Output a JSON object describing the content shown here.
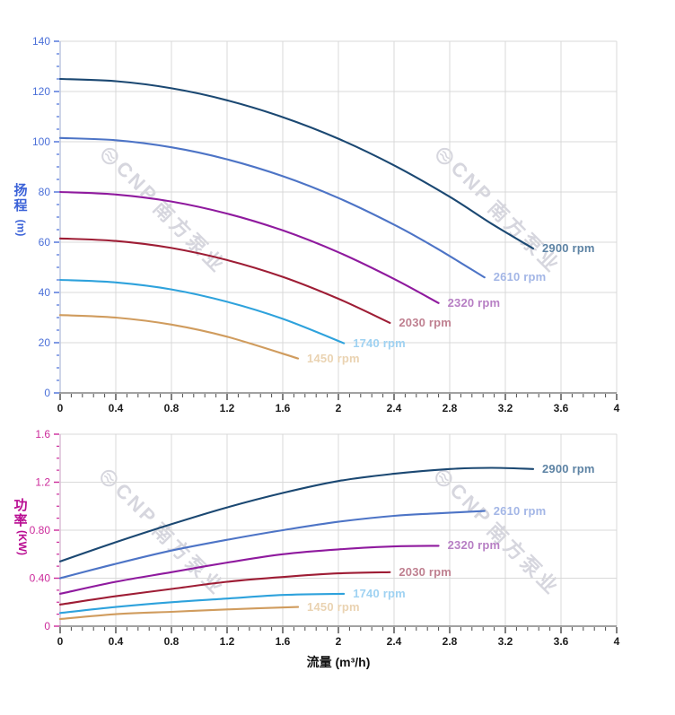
{
  "watermark": {
    "brand": "CNP",
    "cn": "南方泵业",
    "color": "#d6d6de"
  },
  "x_axis_title": "流量 (m³/h)",
  "chart_data": [
    {
      "type": "line",
      "id": "head",
      "ylabel_main": "扬程",
      "ylabel_unit": "(m)",
      "xlabel": "",
      "xlim": [
        0,
        4
      ],
      "ylim": [
        0,
        140
      ],
      "grid": true,
      "axis_color": "#4a6fd8",
      "axis_line_color": "#b9c3de",
      "xticks_values": [
        0,
        0.4,
        0.8,
        1.2,
        1.6,
        2,
        2.4,
        2.8,
        3.2,
        3.6,
        4
      ],
      "xticks_labels": [
        "0",
        "0.4",
        "0.8",
        "1.2",
        "1.6",
        "2",
        "2.4",
        "2.8",
        "3.2",
        "3.6",
        "4"
      ],
      "x_minor_step": 0.08,
      "yticks_values": [
        0,
        20,
        40,
        60,
        80,
        100,
        120,
        140
      ],
      "yticks_labels": [
        "0",
        "20",
        "40",
        "60",
        "80",
        "100",
        "120",
        "140"
      ],
      "y_minor_step": 5,
      "series": [
        {
          "label": "2900 rpm",
          "color": "#1b4872",
          "label_color": "#5d83a4",
          "points": [
            [
              0,
              125
            ],
            [
              0.4,
              124.1
            ],
            [
              0.8,
              121.3
            ],
            [
              1.2,
              116.5
            ],
            [
              1.6,
              109.8
            ],
            [
              2.0,
              101.2
            ],
            [
              2.4,
              90.6
            ],
            [
              2.8,
              78.1
            ],
            [
              3.1,
              67.4
            ],
            [
              3.4,
              57.5
            ]
          ]
        },
        {
          "label": "2610 rpm",
          "color": "#4d74c6",
          "label_color": "#a3b6e6",
          "points": [
            [
              0,
              101.5
            ],
            [
              0.4,
              100.6
            ],
            [
              0.8,
              97.8
            ],
            [
              1.2,
              93.0
            ],
            [
              1.6,
              86.3
            ],
            [
              2.0,
              77.6
            ],
            [
              2.4,
              67.0
            ],
            [
              2.7,
              57.8
            ],
            [
              3.05,
              46.0
            ]
          ]
        },
        {
          "label": "2320 rpm",
          "color": "#8f1a9e",
          "label_color": "#b77fc4",
          "points": [
            [
              0,
              80
            ],
            [
              0.4,
              79.0
            ],
            [
              0.8,
              76.2
            ],
            [
              1.2,
              71.4
            ],
            [
              1.6,
              64.7
            ],
            [
              2.0,
              56.0
            ],
            [
              2.4,
              45.4
            ],
            [
              2.72,
              35.8
            ]
          ]
        },
        {
          "label": "2030 rpm",
          "color": "#9e1d35",
          "label_color": "#bf8090",
          "points": [
            [
              0,
              61.5
            ],
            [
              0.4,
              60.5
            ],
            [
              0.8,
              57.7
            ],
            [
              1.2,
              52.9
            ],
            [
              1.6,
              46.2
            ],
            [
              2.0,
              37.5
            ],
            [
              2.37,
              27.9
            ]
          ]
        },
        {
          "label": "1740 rpm",
          "color": "#2ea2dc",
          "label_color": "#9fd2f2",
          "points": [
            [
              0,
              45
            ],
            [
              0.4,
              44.0
            ],
            [
              0.8,
              41.2
            ],
            [
              1.2,
              36.3
            ],
            [
              1.6,
              29.5
            ],
            [
              2.04,
              19.8
            ]
          ]
        },
        {
          "label": "1450 rpm",
          "color": "#d09c5e",
          "label_color": "#ead3b2",
          "points": [
            [
              0,
              31
            ],
            [
              0.4,
              30.0
            ],
            [
              0.8,
              27.2
            ],
            [
              1.2,
              22.4
            ],
            [
              1.71,
              13.7
            ]
          ]
        }
      ]
    },
    {
      "type": "line",
      "id": "power",
      "ylabel_main": "功率",
      "ylabel_unit": "(KW)",
      "xlabel": "流量 (m³/h)",
      "xlim": [
        0,
        4
      ],
      "ylim": [
        0,
        1.6
      ],
      "grid": true,
      "axis_color": "#cc2b9b",
      "axis_line_color": "#d9b9d2",
      "xticks_values": [
        0,
        0.4,
        0.8,
        1.2,
        1.6,
        2,
        2.4,
        2.8,
        3.2,
        3.6,
        4
      ],
      "xticks_labels": [
        "0",
        "0.4",
        "0.8",
        "1.2",
        "1.6",
        "2",
        "2.4",
        "2.8",
        "3.2",
        "3.6",
        "4"
      ],
      "x_minor_step": 0.08,
      "yticks_values": [
        0,
        0.4,
        0.8,
        1.2,
        1.6
      ],
      "yticks_labels": [
        "0",
        "0.40",
        "0.80",
        "1.2",
        "1.6"
      ],
      "y_minor_step": 0.1,
      "series": [
        {
          "label": "2900 rpm",
          "color": "#1b4872",
          "label_color": "#5d83a4",
          "points": [
            [
              0,
              0.54
            ],
            [
              0.4,
              0.7
            ],
            [
              0.8,
              0.85
            ],
            [
              1.2,
              0.99
            ],
            [
              1.6,
              1.11
            ],
            [
              2.0,
              1.21
            ],
            [
              2.4,
              1.27
            ],
            [
              2.8,
              1.31
            ],
            [
              3.1,
              1.32
            ],
            [
              3.4,
              1.31
            ]
          ]
        },
        {
          "label": "2610 rpm",
          "color": "#4d74c6",
          "label_color": "#a3b6e6",
          "points": [
            [
              0,
              0.4
            ],
            [
              0.4,
              0.52
            ],
            [
              0.8,
              0.63
            ],
            [
              1.2,
              0.72
            ],
            [
              1.6,
              0.8
            ],
            [
              2.0,
              0.87
            ],
            [
              2.4,
              0.92
            ],
            [
              2.7,
              0.94
            ],
            [
              3.05,
              0.96
            ]
          ]
        },
        {
          "label": "2320 rpm",
          "color": "#8f1a9e",
          "label_color": "#b77fc4",
          "points": [
            [
              0,
              0.27
            ],
            [
              0.4,
              0.37
            ],
            [
              0.8,
              0.45
            ],
            [
              1.2,
              0.53
            ],
            [
              1.6,
              0.6
            ],
            [
              2.0,
              0.64
            ],
            [
              2.4,
              0.665
            ],
            [
              2.72,
              0.67
            ]
          ]
        },
        {
          "label": "2030 rpm",
          "color": "#9e1d35",
          "label_color": "#bf8090",
          "points": [
            [
              0,
              0.18
            ],
            [
              0.4,
              0.25
            ],
            [
              0.8,
              0.31
            ],
            [
              1.2,
              0.37
            ],
            [
              1.6,
              0.41
            ],
            [
              2.0,
              0.44
            ],
            [
              2.37,
              0.45
            ]
          ]
        },
        {
          "label": "1740 rpm",
          "color": "#2ea2dc",
          "label_color": "#9fd2f2",
          "points": [
            [
              0,
              0.11
            ],
            [
              0.4,
              0.16
            ],
            [
              0.8,
              0.2
            ],
            [
              1.2,
              0.23
            ],
            [
              1.6,
              0.26
            ],
            [
              2.04,
              0.27
            ]
          ]
        },
        {
          "label": "1450 rpm",
          "color": "#d09c5e",
          "label_color": "#ead3b2",
          "points": [
            [
              0,
              0.06
            ],
            [
              0.4,
              0.1
            ],
            [
              0.8,
              0.12
            ],
            [
              1.2,
              0.14
            ],
            [
              1.71,
              0.16
            ]
          ]
        }
      ]
    }
  ]
}
